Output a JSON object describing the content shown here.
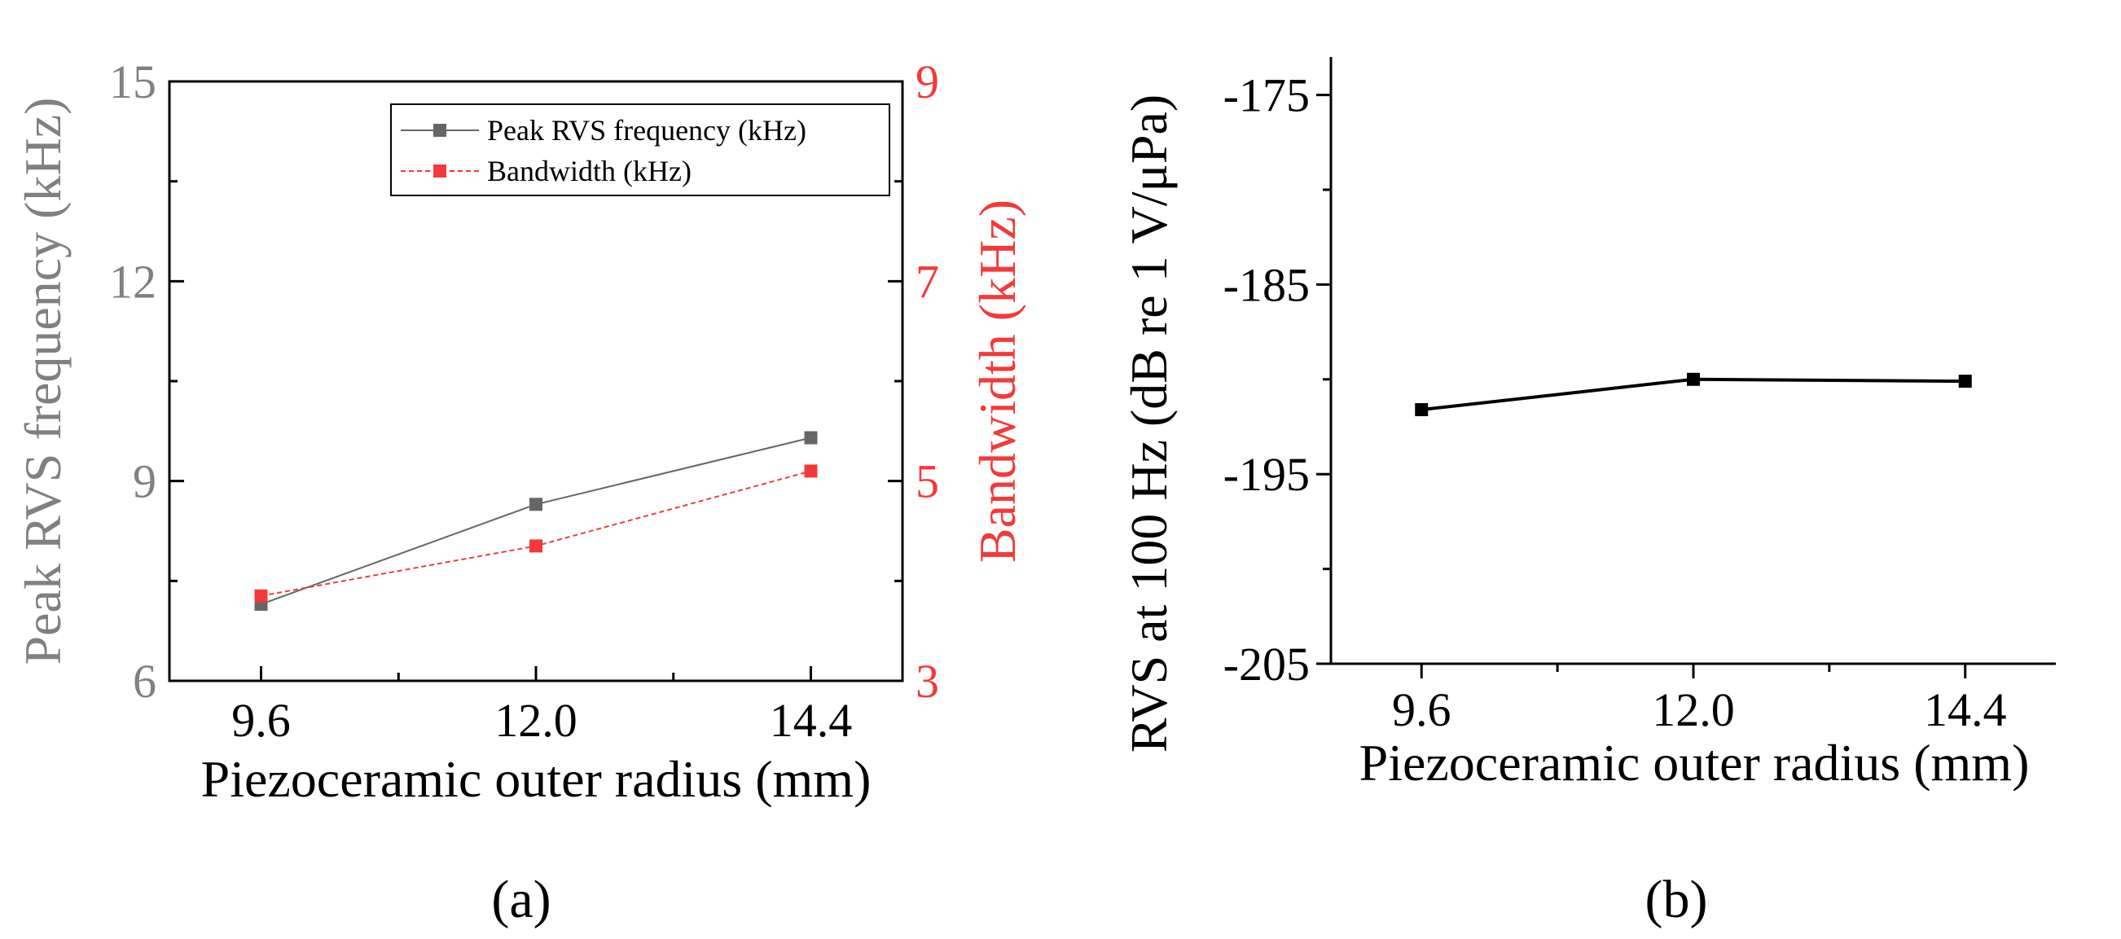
{
  "colors": {
    "left_axis": "#808080",
    "right_axis": "#f23a3a",
    "series_gray": "#666666",
    "series_red": "#f23a3a",
    "black": "#000000"
  },
  "panel_labels": {
    "a": "(a)",
    "b": "(b)"
  },
  "chart_data": [
    {
      "id": "a",
      "type": "line",
      "title": "",
      "xlabel": "Piezoceramic outer radius (mm)",
      "ylabel": "Peak RVS frequency (kHz)",
      "y2label": "Bandwidth (kHz)",
      "x": [
        9.6,
        12.0,
        14.4
      ],
      "x_ticks": [
        "9.6",
        "12.0",
        "14.4"
      ],
      "xlim": [
        8.8,
        15.2
      ],
      "ylim": [
        6,
        15
      ],
      "y_ticks": [
        "6",
        "9",
        "12",
        "15"
      ],
      "y2lim": [
        3,
        9
      ],
      "y2_ticks": [
        "3",
        "5",
        "7",
        "9"
      ],
      "legend_position": "top-right",
      "series": [
        {
          "name": "Peak RVS frequency (kHz)",
          "axis": "left",
          "style": "solid",
          "values": [
            7.15,
            8.65,
            9.65
          ]
        },
        {
          "name": "Bandwidth (kHz)",
          "axis": "right",
          "style": "dashed",
          "values": [
            3.85,
            4.35,
            5.1
          ]
        }
      ]
    },
    {
      "id": "b",
      "type": "line",
      "title": "",
      "xlabel": "Piezoceramic outer radius (mm)",
      "ylabel": "RVS at 100 Hz (dB re 1 V/μPa)",
      "x": [
        9.6,
        12.0,
        14.4
      ],
      "x_ticks": [
        "9.6",
        "12.0",
        "14.4"
      ],
      "xlim": [
        8.8,
        15.2
      ],
      "ylim": [
        -205,
        -173
      ],
      "y_ticks": [
        "-205",
        "-195",
        "-185",
        "-175"
      ],
      "series": [
        {
          "name": "RVS at 100 Hz",
          "style": "solid",
          "values": [
            -191.6,
            -190.0,
            -190.1
          ]
        }
      ]
    }
  ]
}
